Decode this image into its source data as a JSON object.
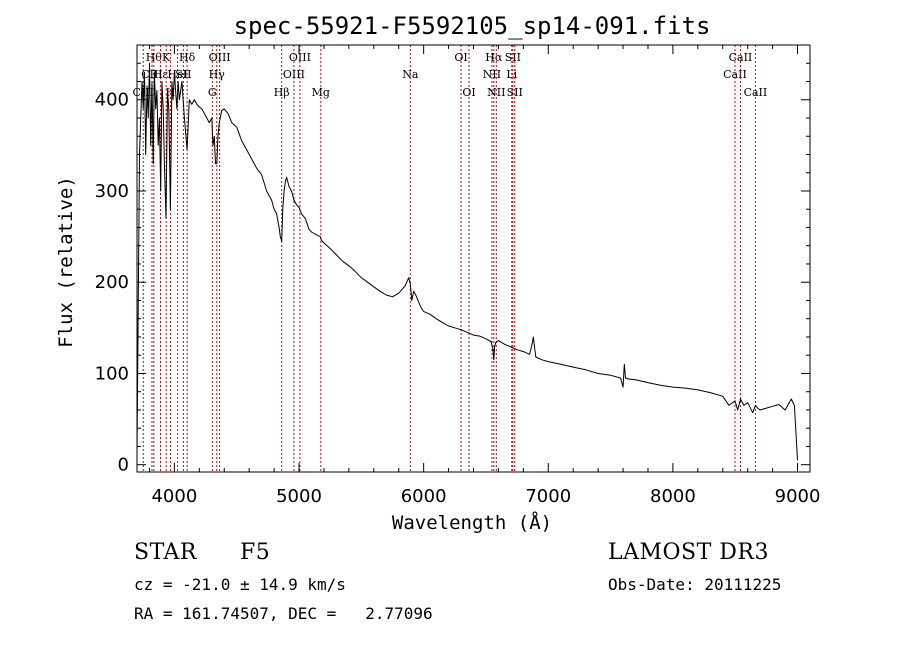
{
  "chart_data": {
    "type": "line",
    "title": "spec-55921-F5592105_sp14-091.fits",
    "xlabel": "Wavelength (Å)",
    "ylabel": "Flux (relative)",
    "xlim": [
      3700,
      9100
    ],
    "ylim": [
      -8,
      460
    ],
    "xticks": [
      4000,
      5000,
      6000,
      7000,
      8000,
      9000
    ],
    "yticks": [
      0,
      100,
      200,
      300,
      400
    ],
    "line_color": "#000000",
    "marker_color": "#cc0000",
    "series": [
      {
        "name": "flux",
        "x": [
          3700,
          3720,
          3740,
          3750,
          3760,
          3770,
          3780,
          3790,
          3800,
          3810,
          3820,
          3830,
          3840,
          3850,
          3860,
          3870,
          3880,
          3890,
          3900,
          3910,
          3920,
          3933,
          3945,
          3955,
          3968,
          3980,
          3990,
          4000,
          4010,
          4020,
          4030,
          4040,
          4060,
          4080,
          4102,
          4120,
          4140,
          4160,
          4180,
          4200,
          4220,
          4240,
          4260,
          4280,
          4300,
          4310,
          4320,
          4330,
          4340,
          4350,
          4360,
          4380,
          4400,
          4430,
          4460,
          4500,
          4540,
          4580,
          4620,
          4660,
          4700,
          4740,
          4780,
          4800,
          4820,
          4840,
          4850,
          4861,
          4870,
          4880,
          4890,
          4900,
          4920,
          4940,
          4960,
          4980,
          5000,
          5020,
          5050,
          5080,
          5100,
          5140,
          5170,
          5180,
          5200,
          5250,
          5300,
          5350,
          5400,
          5450,
          5500,
          5550,
          5600,
          5650,
          5700,
          5750,
          5800,
          5850,
          5880,
          5893,
          5905,
          5920,
          5940,
          5960,
          5980,
          6000,
          6050,
          6100,
          6150,
          6200,
          6250,
          6300,
          6350,
          6400,
          6450,
          6500,
          6540,
          6555,
          6563,
          6570,
          6580,
          6600,
          6650,
          6700,
          6750,
          6800,
          6850,
          6870,
          6880,
          6900,
          6950,
          7000,
          7100,
          7200,
          7300,
          7400,
          7500,
          7580,
          7600,
          7610,
          7620,
          7640,
          7700,
          7800,
          7900,
          8000,
          8100,
          8200,
          8300,
          8400,
          8450,
          8498,
          8520,
          8542,
          8570,
          8600,
          8640,
          8662,
          8680,
          8700,
          8750,
          8800,
          8850,
          8900,
          8950,
          8975,
          9000
        ],
        "y": [
          10,
          340,
          420,
          390,
          430,
          340,
          415,
          380,
          440,
          350,
          420,
          330,
          430,
          390,
          410,
          350,
          380,
          300,
          420,
          390,
          330,
          270,
          410,
          390,
          280,
          420,
          400,
          430,
          410,
          390,
          420,
          400,
          420,
          380,
          345,
          400,
          395,
          400,
          395,
          392,
          390,
          385,
          380,
          375,
          380,
          350,
          360,
          330,
          330,
          360,
          375,
          388,
          390,
          385,
          375,
          370,
          355,
          345,
          335,
          325,
          318,
          300,
          290,
          280,
          275,
          260,
          250,
          245,
          280,
          300,
          310,
          315,
          305,
          300,
          290,
          285,
          282,
          275,
          270,
          258,
          255,
          252,
          250,
          246,
          243,
          237,
          230,
          223,
          218,
          212,
          205,
          200,
          195,
          190,
          186,
          184,
          188,
          196,
          205,
          198,
          180,
          190,
          185,
          178,
          172,
          168,
          165,
          160,
          156,
          152,
          150,
          148,
          145,
          142,
          141,
          138,
          135,
          128,
          115,
          130,
          134,
          136,
          132,
          129,
          126,
          124,
          121,
          132,
          140,
          118,
          115,
          113,
          110,
          107,
          104,
          100,
          98,
          95,
          85,
          110,
          95,
          94,
          93,
          90,
          87,
          85,
          84,
          82,
          79,
          75,
          65,
          70,
          60,
          72,
          65,
          68,
          57,
          65,
          62,
          60,
          62,
          64,
          66,
          60,
          72,
          65,
          5
        ]
      }
    ],
    "lines": [
      {
        "wl": 3750,
        "label": "CIII",
        "row": 3
      },
      {
        "wl": 3820,
        "label": "CIII",
        "row": 2
      },
      {
        "wl": 3835,
        "label": "Hθ",
        "row": 1
      },
      {
        "wl": 3889,
        "label": "Hε",
        "row": 2
      },
      {
        "wl": 3934,
        "label": "K",
        "row": 1
      },
      {
        "wl": 3968,
        "label": "H",
        "row": 3
      },
      {
        "wl": 4026,
        "label": "HeI",
        "row": 2
      },
      {
        "wl": 4072,
        "label": "SII",
        "row": 2
      },
      {
        "wl": 4102,
        "label": "Hδ",
        "row": 1
      },
      {
        "wl": 4304,
        "label": "G",
        "row": 3
      },
      {
        "wl": 4340,
        "label": "Hγ",
        "row": 2
      },
      {
        "wl": 4363,
        "label": "OIII",
        "row": 1
      },
      {
        "wl": 4861,
        "label": "Hβ",
        "row": 3
      },
      {
        "wl": 4959,
        "label": "OIII",
        "row": 2
      },
      {
        "wl": 5007,
        "label": "OIII",
        "row": 1
      },
      {
        "wl": 5175,
        "label": "Mg",
        "row": 3
      },
      {
        "wl": 5893,
        "label": "Na",
        "row": 2
      },
      {
        "wl": 6300,
        "label": "OI",
        "row": 1
      },
      {
        "wl": 6364,
        "label": "OI",
        "row": 3
      },
      {
        "wl": 6548,
        "label": "NII",
        "row": 2
      },
      {
        "wl": 6563,
        "label": "Hα",
        "row": 1
      },
      {
        "wl": 6583,
        "label": "NII",
        "row": 3
      },
      {
        "wl": 6707,
        "label": "Li",
        "row": 2
      },
      {
        "wl": 6716,
        "label": "SII",
        "row": 1
      },
      {
        "wl": 6731,
        "label": "SII",
        "row": 3
      },
      {
        "wl": 8498,
        "label": "CaII",
        "row": 2
      },
      {
        "wl": 8542,
        "label": "CaII",
        "row": 1
      },
      {
        "wl": 8662,
        "label": "CaII",
        "row": 3
      }
    ]
  },
  "info": {
    "class": "STAR",
    "subclass": "F5",
    "survey": "LAMOST DR3",
    "cz": "cz = -21.0 ± 14.9 km/s",
    "obs_date": "Obs-Date: 20111225",
    "radec": "RA = 161.74507, DEC =   2.77096"
  }
}
